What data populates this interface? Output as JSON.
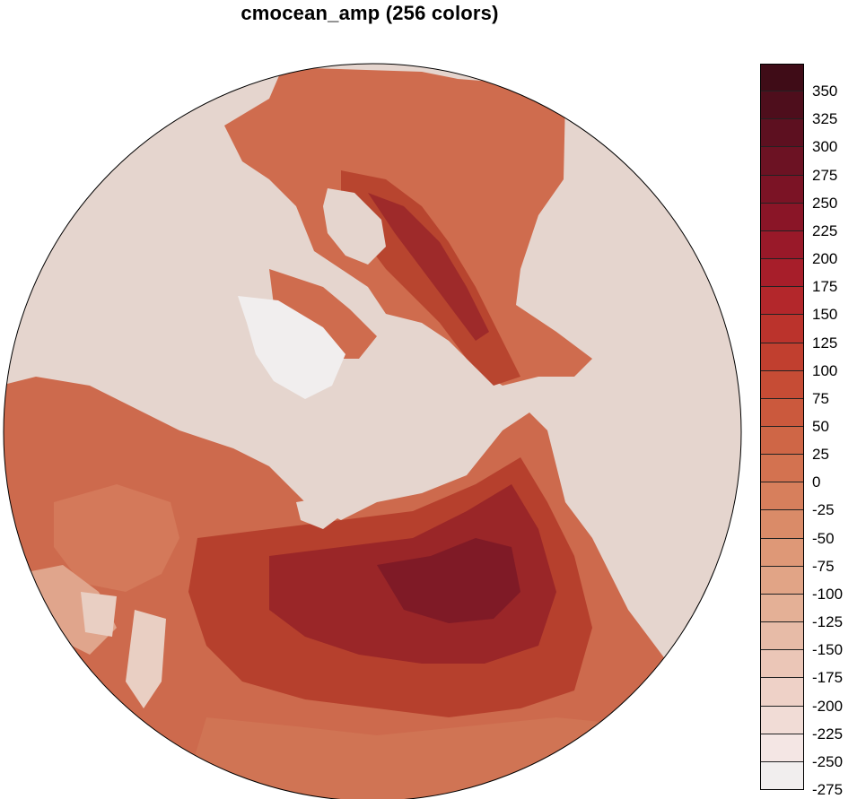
{
  "title": "cmocean_amp (256 colors)",
  "map": {
    "projection": "polar-stereographic-north",
    "ocean_color": "#e5d5ce"
  },
  "colorbar": {
    "ticks": [
      "350",
      "325",
      "300",
      "275",
      "250",
      "225",
      "200",
      "175",
      "150",
      "125",
      "100",
      "75",
      "50",
      "25",
      "0",
      "-25",
      "-50",
      "-75",
      "-100",
      "-125",
      "-150",
      "-175",
      "-200",
      "-225",
      "-250",
      "-275"
    ],
    "colors": [
      "#3f0c17",
      "#4e0e1c",
      "#5d1020",
      "#6c1223",
      "#7b1325",
      "#8a1527",
      "#991929",
      "#a71e2a",
      "#b3272b",
      "#bb332c",
      "#c13f2f",
      "#c64c35",
      "#cb593d",
      "#cf6646",
      "#d37250",
      "#d77f5c",
      "#da8b68",
      "#de9877",
      "#e1a486",
      "#e4b096",
      "#e7bba7",
      "#ebc6b7",
      "#eed1c7",
      "#f1dcd6",
      "#f4e6e4",
      "#f1eeee"
    ]
  }
}
